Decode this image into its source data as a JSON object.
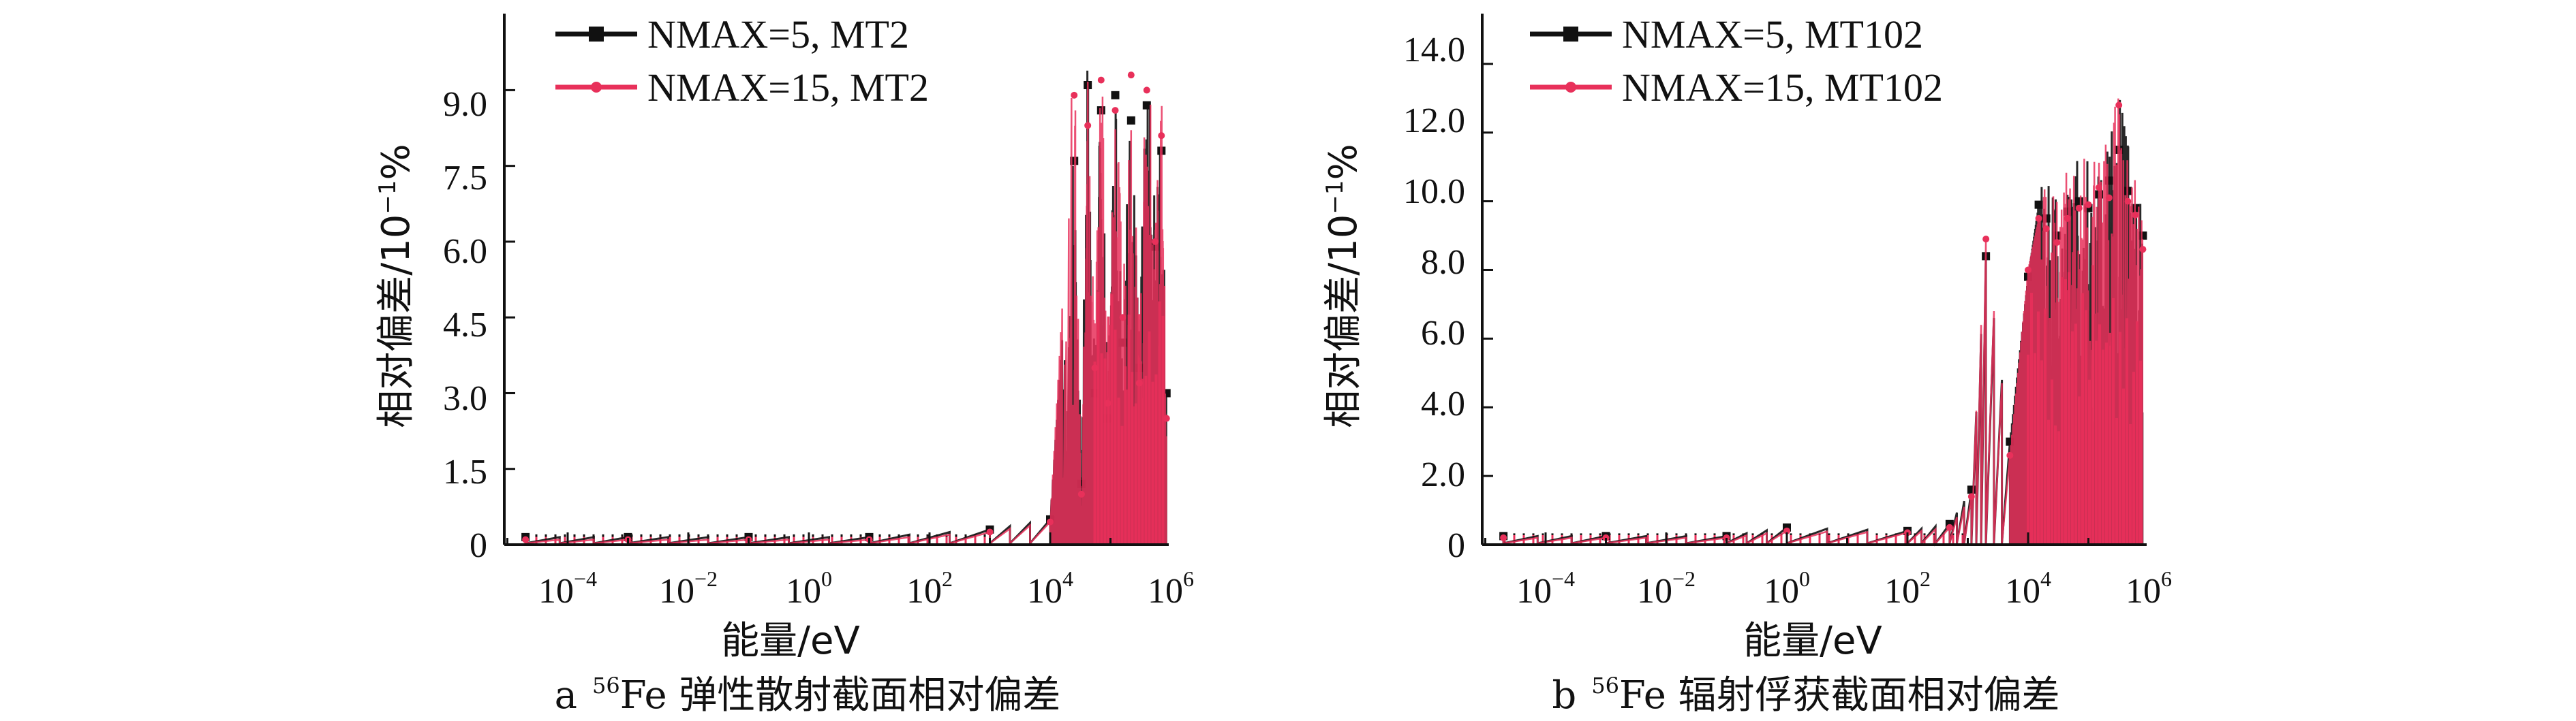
{
  "figure": {
    "panels": [
      {
        "caption_letter": "a",
        "caption_mass": "56",
        "caption_text": "Fe 弹性散射截面相对偏差",
        "ylabel": "相对偏差/10",
        "ylabel_exp": "−1",
        "ylabel_unit": "%",
        "xlabel": "能量/eV",
        "y_ticks": [
          "0",
          "1.5",
          "3.0",
          "4.5",
          "6.0",
          "7.5",
          "9.0"
        ],
        "x_ticks": [
          {
            "base": "10",
            "exp": "−4"
          },
          {
            "base": "10",
            "exp": "−2"
          },
          {
            "base": "10",
            "exp": "0"
          },
          {
            "base": "10",
            "exp": "2"
          },
          {
            "base": "10",
            "exp": "4"
          },
          {
            "base": "10",
            "exp": "6"
          }
        ]
      },
      {
        "caption_letter": "b",
        "caption_mass": "56",
        "caption_text": "Fe 辐射俘获截面相对偏差",
        "ylabel": "相对偏差/10",
        "ylabel_exp": "−1",
        "ylabel_unit": "%",
        "xlabel": "能量/eV",
        "y_ticks": [
          "0",
          "2.0",
          "4.0",
          "6.0",
          "8.0",
          "10.0",
          "12.0",
          "14.0"
        ],
        "x_ticks": [
          {
            "base": "10",
            "exp": "−4"
          },
          {
            "base": "10",
            "exp": "−2"
          },
          {
            "base": "10",
            "exp": "0"
          },
          {
            "base": "10",
            "exp": "2"
          },
          {
            "base": "10",
            "exp": "4"
          },
          {
            "base": "10",
            "exp": "6"
          }
        ]
      }
    ]
  },
  "chart_data": [
    {
      "type": "line",
      "xlabel": "能量/eV",
      "ylabel": "相对偏差/10−1%",
      "x_scale": "log",
      "xlim": [
        1e-05,
        1000000.0
      ],
      "ylim": [
        0,
        10.2
      ],
      "grid": false,
      "legend_position": "top-left",
      "series": [
        {
          "name": "NMAX=5, MT2",
          "color": "#111111",
          "marker": "square",
          "x": [
            2e-05,
            0.001,
            0.1,
            10,
            1000,
            10000,
            25000,
            33000,
            42000,
            55000,
            70000,
            90000,
            120000,
            160000,
            220000,
            300000,
            400000,
            550000,
            700000,
            850000
          ],
          "y": [
            0.15,
            0.15,
            0.15,
            0.15,
            0.3,
            0.5,
            7.6,
            1.2,
            9.1,
            3.0,
            8.6,
            2.5,
            8.9,
            4.0,
            8.4,
            3.5,
            8.7,
            5.9,
            7.8,
            3.0
          ]
        },
        {
          "name": "NMAX=15, MT2",
          "color": "#e8305a",
          "marker": "dot",
          "x": [
            2e-05,
            0.001,
            0.1,
            10,
            1000,
            10000,
            25000,
            33000,
            42000,
            55000,
            70000,
            90000,
            120000,
            160000,
            220000,
            300000,
            400000,
            550000,
            700000,
            850000
          ],
          "y": [
            0.1,
            0.1,
            0.1,
            0.1,
            0.25,
            0.45,
            8.9,
            1.0,
            8.3,
            3.5,
            9.2,
            2.8,
            8.6,
            4.5,
            9.3,
            3.2,
            9.0,
            6.0,
            8.1,
            2.5
          ]
        }
      ]
    },
    {
      "type": "line",
      "xlabel": "能量/eV",
      "ylabel": "相对偏差/10−1%",
      "x_scale": "log",
      "xlim": [
        1e-05,
        1000000.0
      ],
      "ylim": [
        0,
        15
      ],
      "grid": false,
      "legend_position": "top-left",
      "series": [
        {
          "name": "NMAX=5, MT102",
          "color": "#111111",
          "marker": "square",
          "x": [
            2e-05,
            0.001,
            0.1,
            1,
            100,
            500,
            1150,
            2000,
            5000,
            10000,
            15000,
            20000,
            30000,
            45000,
            70000,
            100000,
            150000,
            220000,
            320000,
            450000,
            600000,
            800000
          ],
          "y": [
            0.25,
            0.25,
            0.25,
            0.5,
            0.4,
            0.6,
            1.6,
            8.4,
            3.0,
            7.8,
            9.9,
            9.5,
            9.0,
            9.7,
            10.0,
            9.8,
            10.2,
            10.6,
            11.5,
            10.3,
            9.8,
            9.0
          ]
        },
        {
          "name": "NMAX=15, MT102",
          "color": "#e8305a",
          "marker": "dot",
          "x": [
            2e-05,
            0.001,
            0.1,
            1,
            100,
            500,
            1150,
            2000,
            5000,
            10000,
            15000,
            20000,
            30000,
            45000,
            70000,
            100000,
            150000,
            220000,
            320000,
            450000,
            600000,
            800000
          ],
          "y": [
            0.2,
            0.2,
            0.2,
            0.4,
            0.35,
            0.5,
            1.4,
            8.9,
            2.6,
            8.0,
            9.5,
            9.2,
            8.8,
            9.5,
            9.8,
            9.9,
            10.4,
            10.1,
            12.8,
            10.0,
            9.6,
            8.6
          ]
        }
      ]
    }
  ]
}
